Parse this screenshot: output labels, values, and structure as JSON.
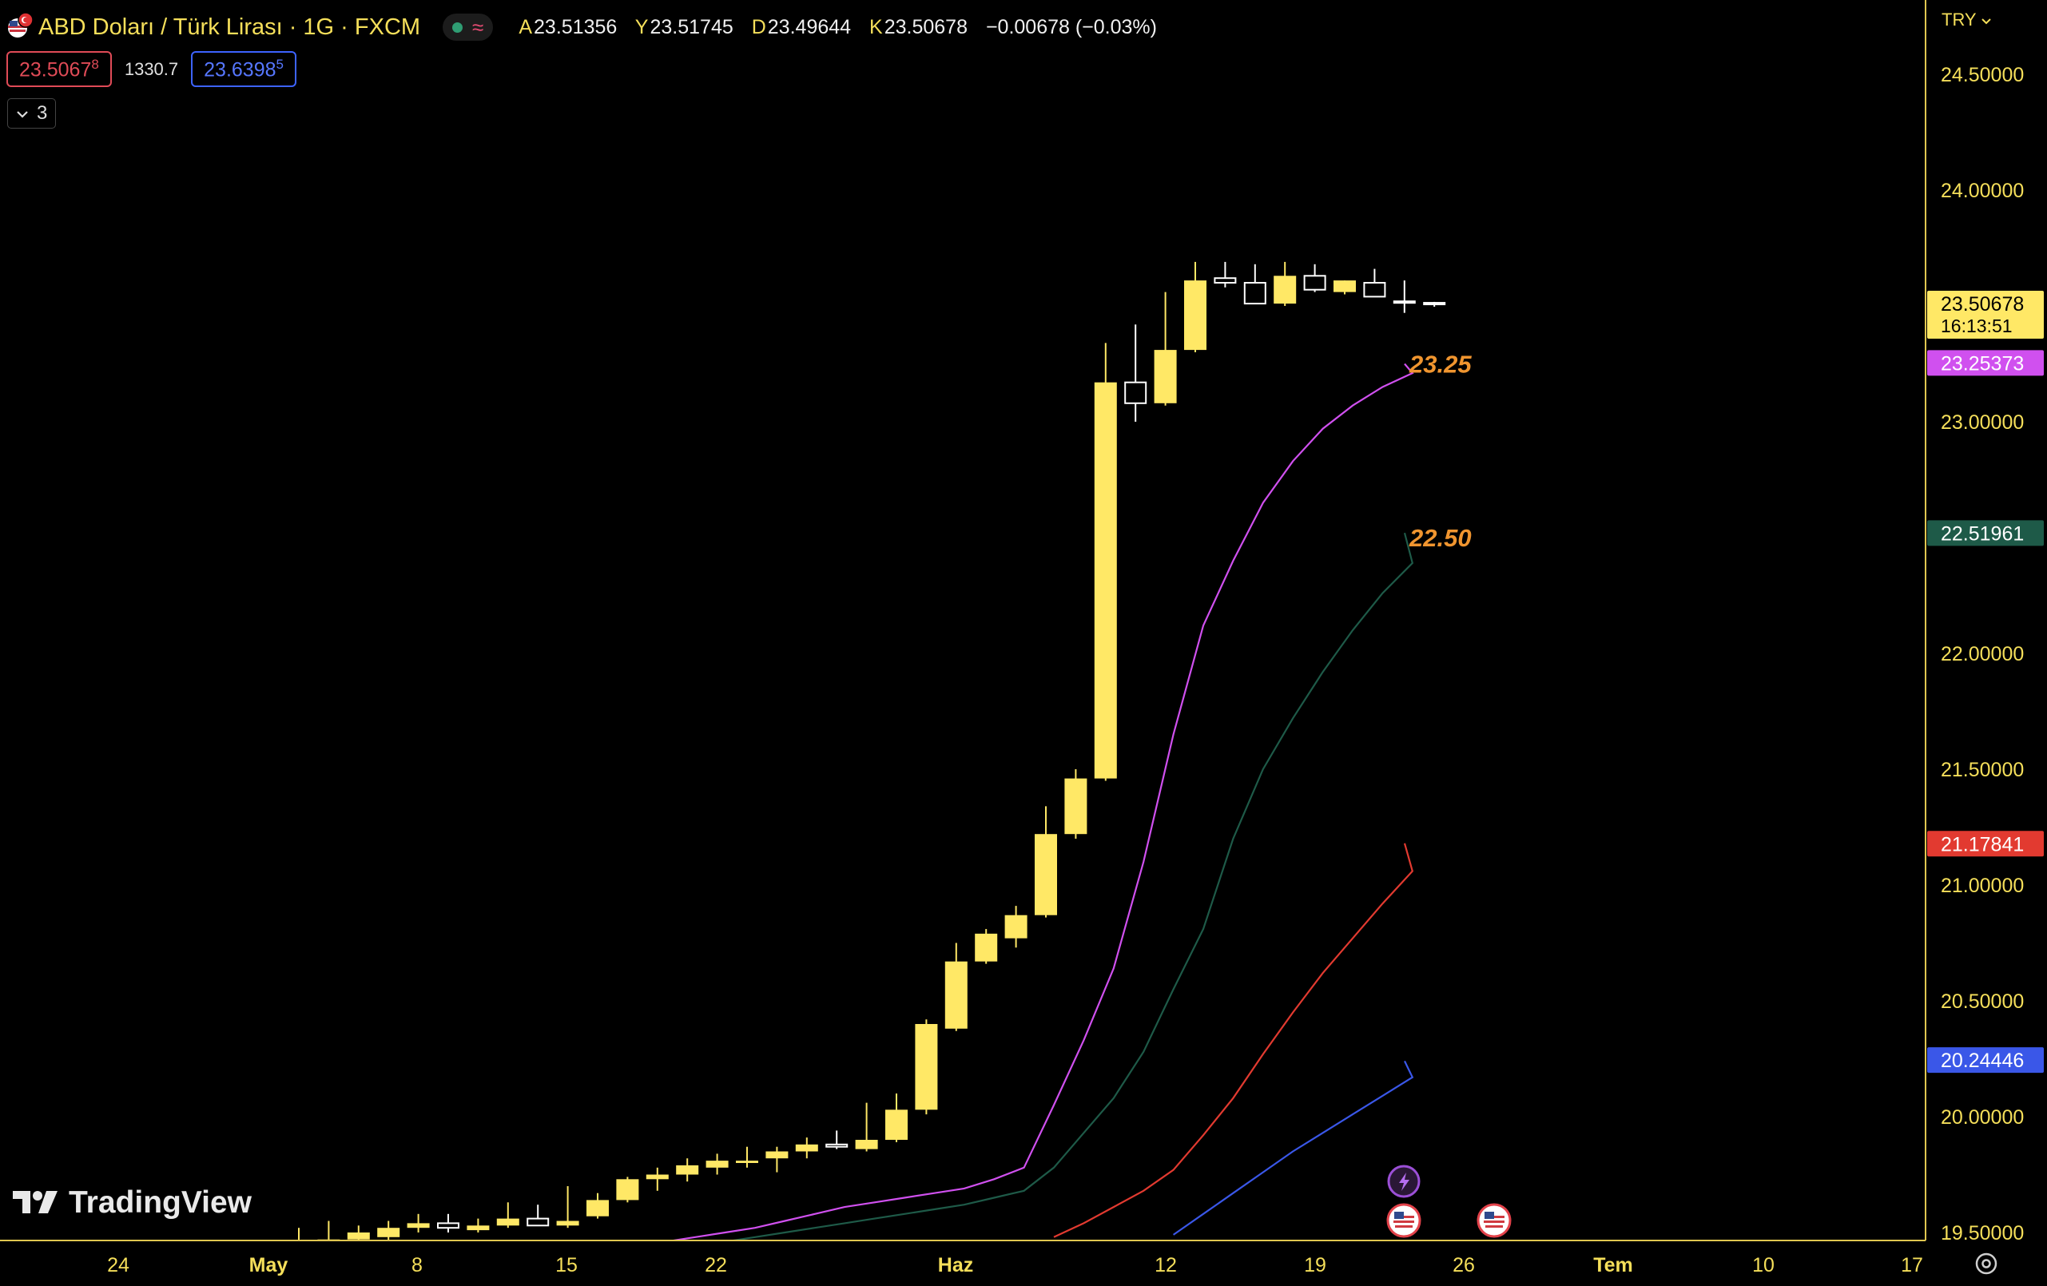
{
  "header": {
    "title": "ABD Doları / Türk Lirası · 1G · FXCM",
    "ohlc": [
      {
        "k": "A",
        "v": "23.51356"
      },
      {
        "k": "Y",
        "v": "23.51745"
      },
      {
        "k": "D",
        "v": "23.49644"
      },
      {
        "k": "K",
        "v": "23.50678"
      }
    ],
    "change": "−0.00678 (−0.03%)",
    "sell_price": "23.5067",
    "sell_sup": "8",
    "spread": "1330.7",
    "buy_price": "23.6398",
    "buy_sup": "5",
    "indicators_count": "3",
    "currency": "TRY"
  },
  "brand": "TradingView",
  "colors": {
    "candle": "#ffe866",
    "ma_fast": "#d050ef",
    "ma_mid": "#1e5a48",
    "ma_red": "#e23a30",
    "ma_blue": "#3a57e8",
    "label_orange": "#f0952f"
  },
  "chart_data": {
    "type": "candlestick",
    "ylim": [
      19.5,
      24.7
    ],
    "y_ticks": [
      "24.50000",
      "24.00000",
      "23.00000",
      "22.00000",
      "21.50000",
      "21.00000",
      "20.50000",
      "20.00000",
      "19.50000"
    ],
    "x_ticks": [
      "24",
      "May",
      "8",
      "15",
      "22",
      "Haz",
      "12",
      "19",
      "26",
      "Tem",
      "10",
      "17"
    ],
    "candles": [
      {
        "o": 19.4,
        "h": 19.52,
        "l": 19.4,
        "c": 19.44,
        "bull": true
      },
      {
        "o": 19.44,
        "h": 19.55,
        "l": 19.43,
        "c": 19.47,
        "bull": true
      },
      {
        "o": 19.47,
        "h": 19.53,
        "l": 19.46,
        "c": 19.5,
        "bull": true
      },
      {
        "o": 19.48,
        "h": 19.55,
        "l": 19.46,
        "c": 19.52,
        "bull": true
      },
      {
        "o": 19.52,
        "h": 19.58,
        "l": 19.5,
        "c": 19.54,
        "bull": true
      },
      {
        "o": 19.54,
        "h": 19.58,
        "l": 19.5,
        "c": 19.52,
        "bull": false
      },
      {
        "o": 19.51,
        "h": 19.56,
        "l": 19.5,
        "c": 19.53,
        "bull": true
      },
      {
        "o": 19.53,
        "h": 19.63,
        "l": 19.52,
        "c": 19.56,
        "bull": true
      },
      {
        "o": 19.56,
        "h": 19.62,
        "l": 19.53,
        "c": 19.53,
        "bull": false
      },
      {
        "o": 19.53,
        "h": 19.7,
        "l": 19.52,
        "c": 19.55,
        "bull": true
      },
      {
        "o": 19.57,
        "h": 19.67,
        "l": 19.56,
        "c": 19.64,
        "bull": true
      },
      {
        "o": 19.64,
        "h": 19.74,
        "l": 19.63,
        "c": 19.73,
        "bull": true
      },
      {
        "o": 19.73,
        "h": 19.78,
        "l": 19.68,
        "c": 19.75,
        "bull": true
      },
      {
        "o": 19.75,
        "h": 19.82,
        "l": 19.72,
        "c": 19.79,
        "bull": true
      },
      {
        "o": 19.78,
        "h": 19.84,
        "l": 19.75,
        "c": 19.81,
        "bull": true
      },
      {
        "o": 19.8,
        "h": 19.87,
        "l": 19.78,
        "c": 19.81,
        "bull": true
      },
      {
        "o": 19.82,
        "h": 19.87,
        "l": 19.76,
        "c": 19.85,
        "bull": true
      },
      {
        "o": 19.85,
        "h": 19.91,
        "l": 19.82,
        "c": 19.88,
        "bull": true
      },
      {
        "o": 19.88,
        "h": 19.94,
        "l": 19.86,
        "c": 19.87,
        "bull": false
      },
      {
        "o": 19.86,
        "h": 20.06,
        "l": 19.85,
        "c": 19.9,
        "bull": true
      },
      {
        "o": 19.9,
        "h": 20.1,
        "l": 19.89,
        "c": 20.03,
        "bull": true
      },
      {
        "o": 20.03,
        "h": 20.42,
        "l": 20.01,
        "c": 20.4,
        "bull": true
      },
      {
        "o": 20.38,
        "h": 20.75,
        "l": 20.37,
        "c": 20.67,
        "bull": true
      },
      {
        "o": 20.67,
        "h": 20.81,
        "l": 20.66,
        "c": 20.79,
        "bull": true
      },
      {
        "o": 20.77,
        "h": 20.91,
        "l": 20.73,
        "c": 20.87,
        "bull": true
      },
      {
        "o": 20.87,
        "h": 21.34,
        "l": 20.86,
        "c": 21.22,
        "bull": true
      },
      {
        "o": 21.22,
        "h": 21.5,
        "l": 21.2,
        "c": 21.46,
        "bull": true
      },
      {
        "o": 21.46,
        "h": 23.34,
        "l": 21.45,
        "c": 23.17,
        "bull": true
      },
      {
        "o": 23.17,
        "h": 23.42,
        "l": 23.0,
        "c": 23.08,
        "bull": false
      },
      {
        "o": 23.08,
        "h": 23.56,
        "l": 23.07,
        "c": 23.31,
        "bull": true
      },
      {
        "o": 23.31,
        "h": 23.69,
        "l": 23.3,
        "c": 23.61,
        "bull": true
      },
      {
        "o": 23.62,
        "h": 23.69,
        "l": 23.58,
        "c": 23.6,
        "bull": false
      },
      {
        "o": 23.6,
        "h": 23.68,
        "l": 23.52,
        "c": 23.51,
        "bull": false
      },
      {
        "o": 23.51,
        "h": 23.69,
        "l": 23.5,
        "c": 23.63,
        "bull": true
      },
      {
        "o": 23.63,
        "h": 23.68,
        "l": 23.56,
        "c": 23.57,
        "bull": false
      },
      {
        "o": 23.56,
        "h": 23.61,
        "l": 23.55,
        "c": 23.61,
        "bull": true
      },
      {
        "o": 23.6,
        "h": 23.66,
        "l": 23.54,
        "c": 23.54,
        "bull": false
      },
      {
        "o": 23.52,
        "h": 23.61,
        "l": 23.47,
        "c": 23.52,
        "bull": false
      },
      {
        "o": 23.51356,
        "h": 23.51745,
        "l": 23.49644,
        "c": 23.50678,
        "bull": false
      }
    ],
    "series": [
      {
        "color": "#d050ef",
        "values": [
          19.46,
          19.48,
          19.5,
          19.52,
          19.55,
          19.58,
          19.61,
          19.63,
          19.65,
          19.67,
          19.69,
          19.73,
          19.78,
          20.05,
          20.33,
          20.64,
          21.1,
          21.65,
          22.12,
          22.4,
          22.65,
          22.83,
          22.97,
          23.07,
          23.15,
          23.21,
          23.25
        ]
      },
      {
        "color": "#1e5a48",
        "values": [
          19.46,
          19.48,
          19.5,
          19.52,
          19.54,
          19.56,
          19.58,
          19.6,
          19.62,
          19.65,
          19.68,
          19.78,
          19.93,
          20.08,
          20.28,
          20.55,
          20.81,
          21.2,
          21.5,
          21.72,
          21.92,
          22.1,
          22.26,
          22.39,
          22.52
        ]
      },
      {
        "color": "#e23a30",
        "values": [
          19.48,
          19.54,
          19.61,
          19.68,
          19.77,
          19.92,
          20.08,
          20.27,
          20.45,
          20.62,
          20.77,
          20.92,
          21.06,
          21.18
        ]
      },
      {
        "color": "#3a57e8",
        "values": [
          19.49,
          19.58,
          19.67,
          19.76,
          19.85,
          19.93,
          20.01,
          20.09,
          20.17,
          20.24
        ]
      }
    ],
    "price_labels": [
      {
        "text": "23.50678",
        "sub": "16:13:51",
        "value": 23.50678,
        "bg": "#ffe866",
        "fg": "#000000"
      },
      {
        "text": "23.25373",
        "value": 23.25373,
        "bg": "#d050ef",
        "fg": "#ffffff"
      },
      {
        "text": "22.51961",
        "value": 22.51961,
        "bg": "#1e5a48",
        "fg": "#ffffff"
      },
      {
        "text": "21.17841",
        "value": 21.17841,
        "bg": "#e23a30",
        "fg": "#ffffff"
      },
      {
        "text": "20.24446",
        "value": 20.24446,
        "bg": "#3a57e8",
        "fg": "#ffffff"
      }
    ],
    "annotations": [
      {
        "text": "23.25",
        "value": 23.25
      },
      {
        "text": "22.50",
        "value": 22.5
      }
    ]
  }
}
